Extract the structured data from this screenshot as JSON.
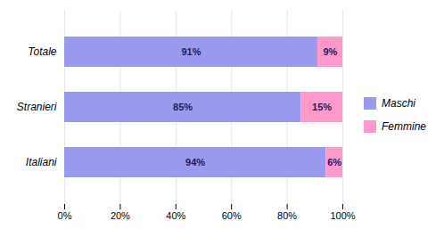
{
  "chart_data": {
    "type": "bar",
    "orientation": "horizontal",
    "stacked": true,
    "categories": [
      "Totale",
      "Stranieri",
      "Italiani"
    ],
    "series": [
      {
        "name": "Maschi",
        "color": "#9999ee",
        "values": [
          91,
          85,
          94
        ],
        "value_labels": [
          "91%",
          "85%",
          "94%"
        ]
      },
      {
        "name": "Femmine",
        "color": "#ff99cc",
        "values": [
          9,
          15,
          6
        ],
        "value_labels": [
          "9%",
          "15%",
          "6%"
        ]
      }
    ],
    "xlim": [
      0,
      100
    ],
    "xticks": [
      {
        "value": 0,
        "label": "0%"
      },
      {
        "value": 20,
        "label": "20%"
      },
      {
        "value": 40,
        "label": "40%"
      },
      {
        "value": 60,
        "label": "60%"
      },
      {
        "value": 80,
        "label": "80%"
      },
      {
        "value": 100,
        "label": "100%"
      }
    ],
    "grid": true,
    "legend": "right",
    "data_labels": true
  }
}
